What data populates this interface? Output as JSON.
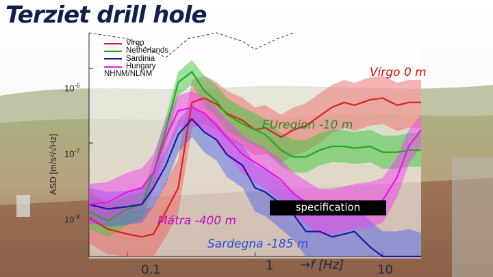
{
  "title": "Terziet drill hole",
  "annotations": {
    "virgo": "Virgo 0 m",
    "euregion": "EUregion  -10 m",
    "matra": "Mátra -400 m",
    "sardegna": "Sardegna -185 m",
    "specification": "specification"
  },
  "x_unit": "→f [Hz]",
  "x_ticks": [
    "0.1",
    "1",
    "10"
  ],
  "y_label": "ASD [m/s²/√Hz]",
  "y_ticks": [
    {
      "base": "10",
      "exp": "-6"
    },
    {
      "base": "10",
      "exp": "-7"
    },
    {
      "base": "10",
      "exp": "-8"
    }
  ],
  "colors": {
    "virgo": "#e02020",
    "netherlands": "#22aa22",
    "sardinia": "#1a1aa0",
    "hungary": "#ee11ee",
    "nhnm": "#333333",
    "title": "#10204a"
  },
  "chart_data": {
    "type": "line",
    "xscale": "log",
    "yscale": "log",
    "xlim": [
      0.05,
      20
    ],
    "ylim": [
      3e-09,
      3e-06
    ],
    "xlabel": "→f [Hz]",
    "ylabel": "ASD [m/s²/√Hz]",
    "legend_position": "top-left",
    "series": [
      {
        "name": "Virgo",
        "key": "virgo",
        "x": [
          0.05,
          0.07,
          0.1,
          0.13,
          0.16,
          0.2,
          0.25,
          0.32,
          0.4,
          0.5,
          0.6,
          0.8,
          1.0,
          1.2,
          1.6,
          2.0,
          2.5,
          3.2,
          4.0,
          5.0,
          6.0,
          8.0,
          10.0,
          13.0,
          16.0,
          20.0
        ],
        "y": [
          1e-08,
          7e-09,
          6e-09,
          5.5e-09,
          6e-09,
          1.2e-08,
          2.5e-08,
          3.5e-07,
          4e-07,
          3.3e-07,
          2.5e-07,
          2e-07,
          1.5e-07,
          1.6e-07,
          1.2e-07,
          1.5e-07,
          1.7e-07,
          2.3e-07,
          3e-07,
          3.5e-07,
          3.2e-07,
          3.8e-07,
          4e-07,
          3.2e-07,
          3.5e-07,
          3.5e-07
        ]
      },
      {
        "name": "Netherlands",
        "key": "netherlands",
        "x": [
          0.05,
          0.07,
          0.1,
          0.13,
          0.16,
          0.2,
          0.25,
          0.32,
          0.4,
          0.5,
          0.6,
          0.8,
          1.0,
          1.2,
          1.6,
          2.0,
          2.5,
          3.2,
          4.0,
          5.0,
          6.0,
          8.0,
          10.0,
          13.0,
          16.0,
          20.0
        ],
        "y": [
          1.2e-08,
          9e-09,
          1.3e-08,
          1.5e-08,
          4e-08,
          1.5e-07,
          6.5e-07,
          9e-07,
          5e-07,
          3.6e-07,
          2.4e-07,
          1.8e-07,
          1.5e-07,
          1.3e-07,
          8e-08,
          6.5e-08,
          6.5e-08,
          8e-08,
          9e-08,
          9e-08,
          8.5e-08,
          9e-08,
          7.5e-08,
          7.5e-08,
          8e-08,
          8e-08
        ]
      },
      {
        "name": "Sardinia",
        "key": "sardinia",
        "x": [
          0.05,
          0.07,
          0.1,
          0.13,
          0.16,
          0.2,
          0.25,
          0.32,
          0.4,
          0.5,
          0.6,
          0.8,
          1.0,
          1.2,
          1.6,
          2.0,
          2.5,
          3.2,
          4.0,
          5.0,
          6.0,
          8.0,
          10.0,
          13.0,
          16.0,
          20.0
        ],
        "y": [
          1.5e-08,
          1.3e-08,
          1.4e-08,
          1.5e-08,
          2.5e-08,
          5e-08,
          1.3e-07,
          2.1e-07,
          1.4e-07,
          1.1e-07,
          7e-08,
          5e-08,
          2.5e-08,
          2.2e-08,
          1.5e-08,
          1.1e-08,
          6.5e-09,
          6.5e-09,
          5.5e-09,
          6e-09,
          6.5e-09,
          4e-09,
          2.8e-09,
          2.8e-09,
          3e-09,
          2.7e-09
        ]
      },
      {
        "name": "Hungary",
        "key": "hungary",
        "x": [
          0.05,
          0.07,
          0.1,
          0.13,
          0.16,
          0.2,
          0.25,
          0.32,
          0.4,
          0.5,
          0.6,
          0.8,
          1.0,
          1.2,
          1.6,
          2.0,
          2.5,
          3.2,
          4.0,
          5.0,
          6.0,
          8.0,
          10.0,
          13.0,
          16.0,
          20.0
        ],
        "y": [
          1.5e-08,
          1.6e-08,
          2.2e-08,
          2.5e-08,
          4e-08,
          1.2e-07,
          2.7e-07,
          3e-07,
          2.5e-07,
          1.7e-07,
          1.2e-07,
          7e-08,
          5.5e-08,
          4.5e-08,
          3.2e-08,
          2.1e-08,
          1.6e-08,
          1.2e-08,
          1.2e-08,
          1.3e-08,
          1.4e-08,
          1.5e-08,
          1.7e-08,
          3.5e-08,
          9e-08,
          1.5e-07
        ]
      },
      {
        "name": "NHNM/NLNM",
        "key": "nhnm",
        "x": [
          0.05,
          0.1,
          0.2,
          0.3,
          0.5,
          0.8,
          1.0,
          1.5,
          2.0
        ],
        "y": [
          3e-06,
          2.5e-06,
          1.4e-06,
          2.5e-06,
          3e-06,
          2.3e-06,
          1.8e-06,
          2.5e-06,
          3e-06
        ]
      }
    ],
    "bands": [
      {
        "key": "virgo",
        "upper": [
          2.3e-08,
          1.6e-08,
          1.4e-08,
          1.3e-08,
          1.4e-08,
          3e-08,
          6e-08,
          7e-07,
          8e-07,
          6.6e-07,
          5e-07,
          4e-07,
          3e-07,
          3.2e-07,
          2.4e-07,
          3e-07,
          3.4e-07,
          4.6e-07,
          6e-07,
          7e-07,
          6.4e-07,
          7.6e-07,
          8e-07,
          6.4e-07,
          7e-07,
          7e-07
        ],
        "lower": [
          4.5e-09,
          3.2e-09,
          2.7e-09,
          2.5e-09,
          2.7e-09,
          5.5e-09,
          1.1e-08,
          1.6e-07,
          1.8e-07,
          1.5e-07,
          1.1e-07,
          9e-08,
          6.8e-08,
          7.2e-08,
          5.4e-08,
          6.8e-08,
          7.7e-08,
          1e-07,
          1.35e-07,
          1.6e-07,
          1.45e-07,
          1.7e-07,
          1.8e-07,
          1.45e-07,
          1.6e-07,
          1.6e-07
        ]
      },
      {
        "key": "netherlands",
        "upper": [
          2e-08,
          1.5e-08,
          2e-08,
          2.2e-08,
          6e-08,
          2.2e-07,
          9e-07,
          1.3e-06,
          8e-07,
          6e-07,
          4e-07,
          3e-07,
          2.5e-07,
          2.1e-07,
          1.35e-07,
          1.1e-07,
          1.1e-07,
          1.35e-07,
          1.5e-07,
          1.5e-07,
          1.4e-07,
          1.5e-07,
          1.25e-07,
          1.25e-07,
          1.35e-07,
          1.35e-07
        ],
        "lower": [
          7e-09,
          5.5e-09,
          8e-09,
          9.5e-09,
          2.5e-08,
          9e-08,
          4.4e-07,
          6e-07,
          3.2e-07,
          2.2e-07,
          1.45e-07,
          1.1e-07,
          9e-08,
          8e-08,
          4.8e-08,
          4e-08,
          4e-08,
          5e-08,
          5.5e-08,
          5.5e-08,
          5.2e-08,
          5.5e-08,
          4.5e-08,
          4.5e-08,
          4.8e-08,
          4.8e-08
        ]
      },
      {
        "key": "sardinia",
        "upper": [
          2.5e-08,
          2.2e-08,
          2.3e-08,
          2.5e-08,
          4e-08,
          8e-08,
          2e-07,
          3.3e-07,
          2.4e-07,
          1.9e-07,
          1.3e-07,
          9.5e-08,
          5e-08,
          4.4e-08,
          3e-08,
          2.2e-08,
          1.4e-08,
          1.4e-08,
          1.2e-08,
          1.3e-08,
          1.4e-08,
          9e-09,
          6.5e-09,
          6.5e-09,
          7e-09,
          6.2e-09
        ],
        "lower": [
          8.5e-09,
          7.5e-09,
          8e-09,
          8.5e-09,
          1.4e-08,
          2.8e-08,
          7.5e-08,
          1.2e-07,
          7.5e-08,
          5.8e-08,
          3.5e-08,
          2.5e-08,
          1.2e-08,
          1.05e-08,
          7e-09,
          5e-09,
          3e-09,
          3e-09,
          2.5e-09,
          2.8e-09,
          3e-09,
          1.8e-09,
          1.2e-09,
          1.2e-09,
          1.3e-09,
          1.2e-09
        ]
      },
      {
        "key": "hungary",
        "upper": [
          2.8e-08,
          3e-08,
          4e-08,
          4.6e-08,
          7e-08,
          2.1e-07,
          4.4e-07,
          4.9e-07,
          4.1e-07,
          2.9e-07,
          2.1e-07,
          1.25e-07,
          1e-07,
          8.4e-08,
          6e-08,
          4e-08,
          3.1e-08,
          2.4e-08,
          2.4e-08,
          2.6e-08,
          2.8e-08,
          3e-08,
          3.4e-08,
          6.5e-08,
          1.5e-07,
          2.4e-07
        ],
        "lower": [
          8e-09,
          8.5e-09,
          1.2e-08,
          1.35e-08,
          2.2e-08,
          6.5e-08,
          1.6e-07,
          1.8e-07,
          1.5e-07,
          1e-07,
          6.8e-08,
          3.9e-08,
          3e-08,
          2.4e-08,
          1.7e-08,
          1.1e-08,
          8.2e-09,
          6e-09,
          6e-09,
          6.5e-09,
          7e-09,
          7.5e-09,
          8.5e-09,
          1.9e-08,
          5.2e-08,
          9e-08
        ]
      }
    ]
  }
}
